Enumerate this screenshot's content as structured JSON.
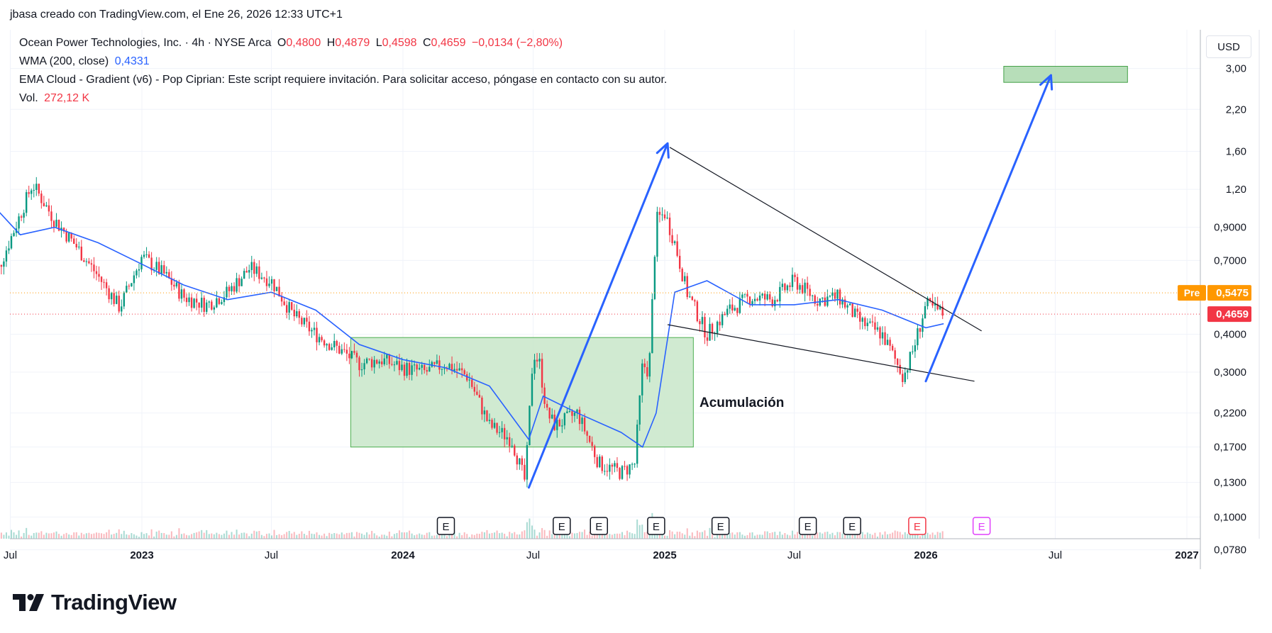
{
  "header": "jbasa creado con TradingView.com, el Ene 26, 2026 12:33 UTC+1",
  "legend": {
    "symbol": "Ocean Power Technologies, Inc. · 4h · NYSE Arca",
    "o_label": "O",
    "o_value": "0,4800",
    "h_label": "H",
    "h_value": "0,4879",
    "l_label": "L",
    "l_value": "0,4598",
    "c_label": "C",
    "c_value": "0,4659",
    "change": "−0,0134 (−2,80%)",
    "wma_label": "WMA (200, close)",
    "wma_value": "0,4331",
    "ema_text": "EMA Cloud - Gradient (v6) - Pop Ciprian: Este script requiere invitación. Para solicitar acceso, póngase en contacto con su autor.",
    "vol_label": "Vol.",
    "vol_value": "272,12 K"
  },
  "currency": "USD",
  "brand": "TradingView",
  "colors": {
    "candle_up": "#089981",
    "candle_down": "#f23645",
    "wma": "#2962ff",
    "zone_fill": "#c8e6c9",
    "zone_stroke": "#4caf50",
    "arrow": "#2962ff",
    "pre": "#ff9800",
    "last": "#f23645"
  },
  "chart_data": {
    "type": "candlestick",
    "timeframe": "4h",
    "y_scale": "log",
    "ylim": [
      0.075,
      3.2
    ],
    "y_ticks": [
      "3,00",
      "2,20",
      "1,60",
      "1,20",
      "0,9000",
      "0,7000",
      "0,4000",
      "0,3000",
      "0,2200",
      "0,1700",
      "0,1300",
      "0,1000",
      "0,0780"
    ],
    "x_ticks": [
      "Jul",
      "2023",
      "Jul",
      "2024",
      "Jul",
      "2025",
      "Jul",
      "2026",
      "Jul",
      "2027"
    ],
    "price_markers": [
      {
        "label": "Pre",
        "value": "0,5475"
      },
      {
        "label": "",
        "value": "0,4659"
      }
    ],
    "close_series": {
      "x": [
        "2022-06-01",
        "2022-07-01",
        "2022-08-01",
        "2022-09-01",
        "2022-10-01",
        "2022-11-01",
        "2022-12-01",
        "2023-01-01",
        "2023-02-01",
        "2023-03-01",
        "2023-04-01",
        "2023-05-01",
        "2023-06-01",
        "2023-07-01",
        "2023-08-01",
        "2023-09-01",
        "2023-10-01",
        "2023-11-01",
        "2023-12-01",
        "2024-01-01",
        "2024-02-01",
        "2024-03-01",
        "2024-04-01",
        "2024-05-01",
        "2024-06-01",
        "2024-06-20",
        "2024-07-01",
        "2024-07-10",
        "2024-07-20",
        "2024-08-01",
        "2024-09-01",
        "2024-10-01",
        "2024-11-01",
        "2024-11-20",
        "2024-12-01",
        "2024-12-10",
        "2024-12-20",
        "2025-01-01",
        "2025-01-15",
        "2025-02-01",
        "2025-03-01",
        "2025-04-01",
        "2025-05-01",
        "2025-06-01",
        "2025-07-01",
        "2025-07-20",
        "2025-08-01",
        "2025-09-01",
        "2025-10-01",
        "2025-11-01",
        "2025-12-01",
        "2025-12-15",
        "2026-01-01",
        "2026-01-26"
      ],
      "y": [
        0.55,
        0.82,
        1.25,
        0.95,
        0.78,
        0.62,
        0.49,
        0.72,
        0.63,
        0.53,
        0.5,
        0.55,
        0.66,
        0.6,
        0.46,
        0.4,
        0.36,
        0.32,
        0.33,
        0.31,
        0.3,
        0.32,
        0.29,
        0.2,
        0.18,
        0.13,
        0.35,
        0.32,
        0.22,
        0.2,
        0.22,
        0.15,
        0.14,
        0.15,
        0.32,
        0.3,
        0.95,
        1.0,
        0.8,
        0.55,
        0.4,
        0.48,
        0.53,
        0.52,
        0.6,
        0.55,
        0.52,
        0.53,
        0.44,
        0.4,
        0.29,
        0.36,
        0.5,
        0.4659
      ]
    },
    "wma_series": {
      "name": "WMA (200, close)",
      "x": [
        "2022-06-01",
        "2022-07-15",
        "2022-09-01",
        "2022-11-01",
        "2023-01-01",
        "2023-03-01",
        "2023-05-01",
        "2023-07-01",
        "2023-09-01",
        "2023-11-01",
        "2024-01-01",
        "2024-03-01",
        "2024-05-01",
        "2024-06-25",
        "2024-07-15",
        "2024-09-01",
        "2024-11-01",
        "2024-12-01",
        "2024-12-20",
        "2025-01-15",
        "2025-03-01",
        "2025-05-01",
        "2025-07-01",
        "2025-09-01",
        "2025-11-01",
        "2026-01-01",
        "2026-01-26"
      ],
      "y": [
        1.1,
        0.85,
        0.9,
        0.8,
        0.68,
        0.58,
        0.52,
        0.55,
        0.48,
        0.37,
        0.33,
        0.31,
        0.27,
        0.18,
        0.25,
        0.22,
        0.19,
        0.17,
        0.22,
        0.55,
        0.6,
        0.5,
        0.5,
        0.52,
        0.48,
        0.42,
        0.4331
      ]
    },
    "earnings_markers": [
      "E",
      "E",
      "E",
      "E",
      "E",
      "E",
      "E",
      "E",
      "E"
    ],
    "annotations": {
      "zone_label": "Acumulación",
      "accumulation_zone": {
        "x": [
          "2023-10-20",
          "2025-02-10"
        ],
        "y": [
          0.17,
          0.39
        ]
      },
      "target_zone": {
        "x": [
          "2026-04-20",
          "2026-10-10"
        ],
        "y": [
          2.7,
          3.05
        ]
      },
      "upper_trendline": {
        "x": [
          "2025-01-08",
          "2026-03-20"
        ],
        "y": [
          1.65,
          0.41
        ]
      },
      "lower_trendline": {
        "x": [
          "2025-01-05",
          "2026-03-10"
        ],
        "y": [
          0.43,
          0.28
        ]
      },
      "arrows": [
        {
          "x": [
            "2024-06-25",
            "2025-01-05"
          ],
          "y": [
            0.125,
            1.7
          ]
        },
        {
          "x": [
            "2026-01-01",
            "2026-06-25"
          ],
          "y": [
            0.28,
            2.85
          ]
        }
      ]
    }
  }
}
